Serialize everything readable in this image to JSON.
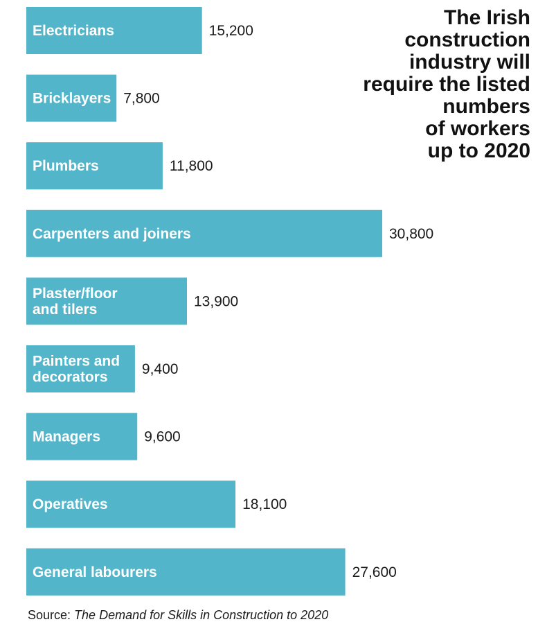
{
  "chart_data": {
    "type": "bar",
    "orientation": "horizontal",
    "title": "The Irish construction industry will require the listed numbers of workers up to 2020",
    "title_lines": [
      "The Irish",
      "construction",
      "industry will",
      "require the listed",
      "numbers",
      "of workers",
      "up to 2020"
    ],
    "categories": [
      [
        "Electricians"
      ],
      [
        "Bricklayers"
      ],
      [
        "Plumbers"
      ],
      [
        "Carpenters and joiners"
      ],
      [
        "Plaster/floor",
        "and tilers"
      ],
      [
        "Painters and",
        "decorators"
      ],
      [
        "Managers"
      ],
      [
        "Operatives"
      ],
      [
        "General labourers"
      ]
    ],
    "values": [
      15200,
      7800,
      11800,
      30800,
      13900,
      9400,
      9600,
      18100,
      27600
    ],
    "value_labels": [
      "15,200",
      "7,800",
      "11,800",
      "30,800",
      "13,900",
      "9,400",
      "9,600",
      "18,100",
      "27,600"
    ],
    "xlim": [
      0,
      30800
    ],
    "xlabel": "",
    "ylabel": "",
    "grid": false,
    "legend": "none",
    "bar_color": "#52B5CA",
    "source_prefix": "Source: ",
    "source_title": "The Demand for Skills in Construction to 2020"
  }
}
